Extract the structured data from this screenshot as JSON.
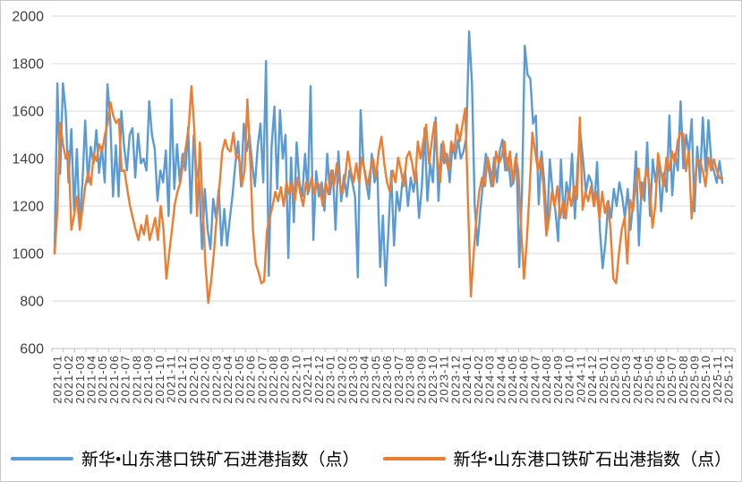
{
  "chart_data": {
    "type": "line",
    "title": "",
    "grid": true,
    "legend_position": "bottom",
    "y_axis": {
      "min": 600,
      "max": 2000,
      "step": 200,
      "ticks": [
        600,
        800,
        1000,
        1200,
        1400,
        1600,
        1800,
        2000
      ]
    },
    "x_labels": [
      "2021-01",
      "2021-02",
      "2021-03",
      "2021-04",
      "2021-05",
      "2021-06",
      "2021-07",
      "2021-08",
      "2021-09",
      "2021-10",
      "2021-11",
      "2021-12",
      "2022-01",
      "2022-02",
      "2022-03",
      "2022-04",
      "2022-05",
      "2022-06",
      "2022-07",
      "2022-08",
      "2022-09",
      "2022-10",
      "2022-11",
      "2022-12",
      "2023-01",
      "2023-02",
      "2023-03",
      "2023-04",
      "2023-05",
      "2023-06",
      "2023-07",
      "2023-08",
      "2023-09",
      "2023-10",
      "2023-11",
      "2023-12",
      "2024-01",
      "2024-02",
      "2024-03",
      "2024-04",
      "2024-05",
      "2024-06",
      "2024-07",
      "2024-08",
      "2024-09",
      "2024-10",
      "2024-11",
      "2024-12",
      "2025-01",
      "2025-02",
      "2025-03",
      "2025-04",
      "2025-05",
      "2025-06",
      "2025-07",
      "2025-08",
      "2025-09",
      "2025-10",
      "2025-11",
      "2025-12"
    ],
    "x_resolution": "weekly (4 points per labeled month)",
    "series": [
      {
        "name": "新华•山东港口铁矿石进港指数（点）",
        "color": "#5B9BD5",
        "values": [
          1000,
          1717,
          1336,
          1717,
          1600,
          1300,
          1524,
          1180,
          1440,
          1120,
          1300,
          1560,
          1300,
          1450,
          1380,
          1520,
          1340,
          1450,
          1300,
          1713,
          1560,
          1240,
          1456,
          1240,
          1600,
          1450,
          1350,
          1500,
          1528,
          1320,
          1505,
          1380,
          1400,
          1350,
          1641,
          1498,
          1441,
          1222,
          1350,
          1300,
          1434,
          1158,
          1649,
          1272,
          1460,
          1300,
          1420,
          1350,
          1532,
          1170,
          1498,
          1350,
          1300,
          1019,
          1272,
          1100,
          1019,
          1230,
          1150,
          1272,
          1034,
          1188,
          1034,
          1147,
          1250,
          1380,
          1472,
          1283,
          1547,
          1430,
          1500,
          1380,
          1283,
          1450,
          1547,
          1300,
          1811,
          906,
          1449,
          1619,
          1272,
          1604,
          1400,
          1500,
          981,
          1404,
          1132,
          1468,
          1300,
          1240,
          1420,
          1250,
          1705,
          1057,
          1347,
          1240,
          1300,
          1180,
          1420,
          1250,
          1350,
          1100,
          1430,
          1220,
          1330,
          1240,
          1350,
          1300,
          1240,
          900,
          1604,
          1380,
          1300,
          1230,
          1420,
          1300,
          1350,
          943,
          1160,
          864,
          1100,
          1347,
          1034,
          1260,
          1180,
          1300,
          1347,
          1200,
          1320,
          1260,
          1347,
          1150,
          1280,
          1528,
          1222,
          1380,
          1300,
          1573,
          1222,
          1460,
          1380,
          1420,
          1300,
          1460,
          1400,
          1480,
          1400,
          1430,
          1490,
          1935,
          1717,
          1200,
          1034,
          1180,
          1300,
          1420,
          1360,
          1283,
          1404,
          1300,
          1430,
          1480,
          1350,
          1404,
          1283,
          1300,
          1420,
          943,
          1260,
          1875,
          1754,
          1736,
          1547,
          1581,
          1207,
          1430,
          1300,
          1109,
          1396,
          1260,
          1180,
          1053,
          1396,
          1150,
          1300,
          1230,
          1420,
          1147,
          1380,
          1505,
          1385,
          1260,
          1330,
          1300,
          1200,
          1385,
          1100,
          939,
          1050,
          1222,
          1150,
          1272,
          1200,
          1300,
          1240,
          1150,
          1272,
          1100,
          1222,
          1430,
          1034,
          1300,
          1222,
          1468,
          1158,
          1396,
          1300,
          1396,
          1177,
          1340,
          1260,
          1581,
          1245,
          1420,
          1350,
          1641,
          1358,
          1500,
          1420,
          1566,
          1177,
          1450,
          1300,
          1573,
          1347,
          1562,
          1390,
          1347,
          1298,
          1390,
          1298
        ]
      },
      {
        "name": "新华•山东港口铁矿石出港指数（点）",
        "color": "#ED7D31",
        "values": [
          1000,
          1180,
          1550,
          1460,
          1400,
          1430,
          1100,
          1160,
          1240,
          1100,
          1190,
          1286,
          1340,
          1290,
          1420,
          1390,
          1460,
          1430,
          1500,
          1550,
          1637,
          1580,
          1550,
          1566,
          1347,
          1350,
          1270,
          1200,
          1150,
          1100,
          1057,
          1120,
          1080,
          1160,
          1057,
          1100,
          1150,
          1057,
          1200,
          1100,
          894,
          1000,
          1100,
          1207,
          1260,
          1300,
          1380,
          1450,
          1530,
          1705,
          1524,
          1158,
          1468,
          1200,
          950,
          792,
          880,
          1000,
          1150,
          1283,
          1430,
          1479,
          1440,
          1430,
          1509,
          1400,
          1410,
          1283,
          1350,
          1649,
          1400,
          1100,
          958,
          921,
          875,
          883,
          1094,
          1150,
          1200,
          1260,
          1220,
          1280,
          1200,
          1300,
          1250,
          1300,
          1220,
          1320,
          1250,
          1200,
          1300,
          1260,
          1320,
          1250,
          1300,
          1283,
          1200,
          1300,
          1250,
          1350,
          1283,
          1380,
          1300,
          1250,
          1320,
          1430,
          1350,
          1300,
          1380,
          1300,
          1404,
          1350,
          1283,
          1350,
          1400,
          1320,
          1430,
          1492,
          1380,
          1300,
          1260,
          1350,
          1300,
          1404,
          1350,
          1283,
          1404,
          1430,
          1380,
          1300,
          1472,
          1400,
          1472,
          1543,
          1380,
          1472,
          1554,
          1400,
          1300,
          1472,
          1400,
          1350,
          1472,
          1430,
          1543,
          1472,
          1543,
          1611,
          1200,
          819,
          1000,
          1150,
          1260,
          1320,
          1283,
          1404,
          1350,
          1283,
          1430,
          1380,
          1404,
          1472,
          1350,
          1430,
          1300,
          1404,
          1350,
          1100,
          894,
          1050,
          1260,
          1509,
          1430,
          1350,
          1404,
          1283,
          1075,
          1150,
          1260,
          1200,
          1283,
          1150,
          1220,
          1147,
          1260,
          1200,
          1283,
          1230,
          1573,
          1185,
          1260,
          1220,
          1283,
          1200,
          1260,
          1147,
          1260,
          1170,
          1220,
          1100,
          894,
          875,
          1000,
          1100,
          1150,
          958,
          1226,
          1180,
          1283,
          1358,
          1226,
          1300,
          1358,
          1283,
          1109,
          1200,
          1422,
          1347,
          1283,
          1404,
          1350,
          1430,
          1380,
          1472,
          1509,
          1505,
          1347,
          1430,
          1147,
          1283,
          1396,
          1392,
          1350,
          1283,
          1404,
          1350,
          1396,
          1350,
          1317,
          1317
        ]
      }
    ]
  },
  "colors": {
    "series_inbound": "#5B9BD5",
    "series_outbound": "#ED7D31",
    "gridline": "#D9D9D9",
    "axis_line": "#BFBFBF",
    "axis_text": "#404040"
  }
}
